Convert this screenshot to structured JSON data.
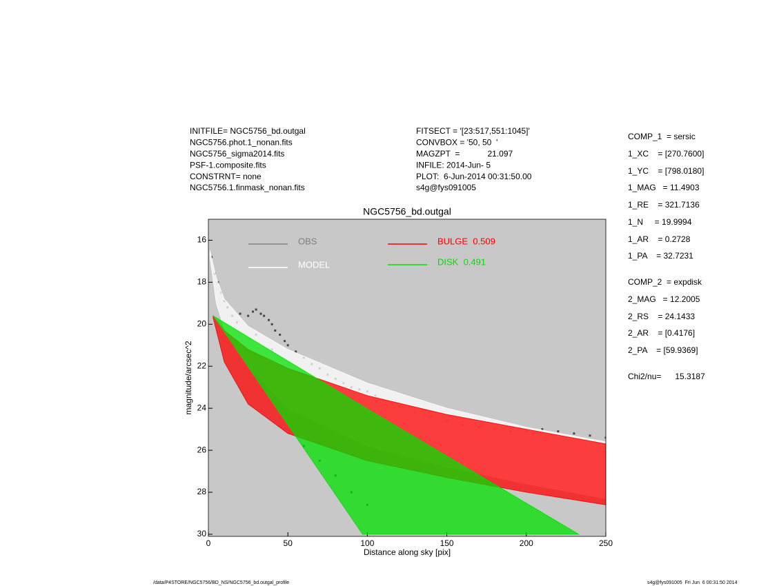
{
  "header": {
    "left": [
      "INITFILE= NGC5756_bd.outgal",
      "NGC5756.phot.1_nonan.fits",
      "NGC5756_sigma2014.fits",
      "PSF-1.composite.fits",
      "CONSTRNT= none",
      "NGC5756.1.finmask_nonan.fits"
    ],
    "middle": [
      "FITSECT = '[23:517,551:1045]'",
      "CONVBOX = '50, 50  '",
      "MAGZPT  =            21.097",
      "INFILE: 2014-Jun- 5",
      "PLOT:  6-Jun-2014 00:31:50.00",
      "s4g@fys091005"
    ]
  },
  "parameters": [
    "COMP_1  = sersic",
    "1_XC    = [270.7600]",
    "1_YC    = [798.0180]",
    "1_MAG   = 11.4903",
    "1_RE    = 321.7136",
    "1_N     = 19.9994",
    "1_AR    = 0.2728",
    "1_PA    = 32.7231",
    "COMP_2  = expdisk",
    "2_MAG   = 12.2005",
    "2_RS    = 24.1433",
    "2_AR    = [0.4176]",
    "2_PA    = [59.9369]",
    "Chi2/nu=      15.3187"
  ],
  "footer": {
    "left": "/data/P4STORE/NGC5756/BD_NS/NGC5756_bd.outgal_profile",
    "right": "s4g@fys091005  Fri Jun  6 00:31:50 2014"
  },
  "chart_data": {
    "type": "scatter",
    "title": "NGC5756_bd.outgal",
    "x_label": "Distance along sky [pix]",
    "y_label": "magnitude/arcsec^2",
    "xlim": [
      0,
      250
    ],
    "xticks": [
      0,
      50,
      100,
      150,
      200,
      250
    ],
    "ylim": [
      15,
      30.1
    ],
    "yticks": [
      16,
      18,
      20,
      22,
      24,
      26,
      28,
      30
    ],
    "y_inverted": true,
    "background": "#c8c8c8",
    "series": [
      {
        "name": "OBS",
        "color": "#454545",
        "kind": "points",
        "x": [
          2,
          4,
          6,
          8,
          10,
          12,
          15,
          18,
          20,
          25,
          28,
          30,
          33,
          35,
          38,
          40,
          42,
          45,
          48,
          50,
          55,
          60,
          65,
          70,
          75,
          80,
          85,
          90,
          95,
          100,
          105,
          110,
          120,
          130,
          140,
          150,
          160,
          170,
          180,
          190,
          200,
          210,
          220,
          230,
          240,
          250,
          60,
          70,
          80,
          90,
          100,
          30,
          40
        ],
        "values": [
          16.8,
          17.6,
          18.0,
          18.5,
          18.9,
          19.2,
          19.6,
          19.9,
          19.5,
          19.6,
          19.4,
          19.3,
          19.5,
          19.6,
          19.8,
          20.0,
          20.3,
          20.5,
          20.8,
          21.0,
          21.3,
          21.6,
          21.9,
          22.1,
          22.4,
          22.6,
          22.8,
          23.0,
          23.1,
          23.2,
          23.4,
          23.6,
          23.9,
          24.2,
          24.4,
          24.6,
          24.8,
          24.9,
          25.0,
          25.1,
          25.1,
          25.0,
          25.1,
          25.2,
          25.3,
          25.4,
          25.8,
          26.5,
          27.2,
          28.0,
          28.6,
          20.5,
          21.2
        ]
      },
      {
        "name": "MODEL",
        "color": "#ffffff",
        "kind": "band",
        "x": [
          1,
          5,
          10,
          25,
          50,
          100,
          150,
          200,
          250
        ],
        "values": [
          16.5,
          17.8,
          18.8,
          20.1,
          21.2,
          22.8,
          24.0,
          24.9,
          25.6
        ],
        "values_low": [
          16.8,
          19.0,
          20.2,
          22.0,
          24.0,
          25.8,
          26.8,
          27.6,
          28.3
        ]
      },
      {
        "name": "BULGE  0.509",
        "color": "#ff0000",
        "kind": "band",
        "x": [
          3,
          10,
          25,
          50,
          100,
          150,
          200,
          250
        ],
        "values": [
          19.6,
          20.3,
          21.2,
          22.1,
          23.4,
          24.3,
          25.0,
          25.7
        ],
        "values_low": [
          19.7,
          21.8,
          23.8,
          25.2,
          26.5,
          27.3,
          28.0,
          28.6
        ]
      },
      {
        "name": "DISK  0.491",
        "color": "#00e000",
        "kind": "band",
        "x": [
          3,
          97,
          233
        ],
        "values": [
          19.6,
          23.9,
          30.0
        ],
        "values_low": [
          19.6,
          30.0,
          30.0
        ]
      }
    ]
  }
}
